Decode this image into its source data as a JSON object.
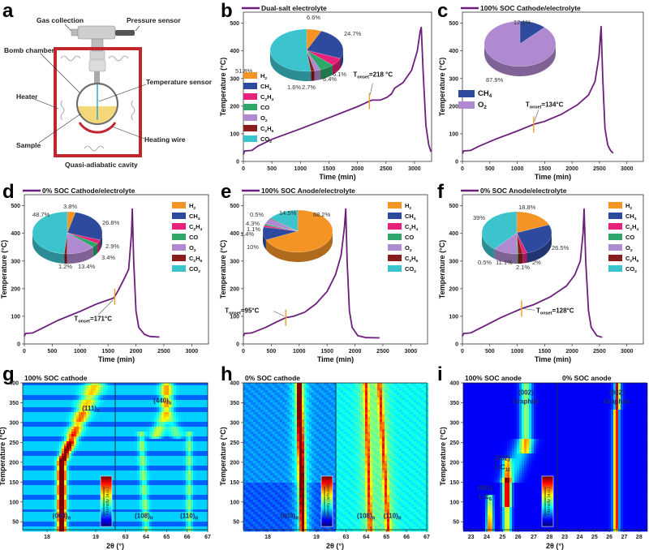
{
  "figure": {
    "panel_labels": [
      "a",
      "b",
      "c",
      "d",
      "e",
      "f",
      "g",
      "h",
      "i"
    ]
  },
  "diagram": {
    "labels": {
      "gas_collection": "Gas collection",
      "pressure_sensor": "Pressure sensor",
      "bomb_chamber": "Bomb chamber",
      "temperature_sensor": "Temperature sensor",
      "heater": "Heater",
      "sample": "Sample",
      "heating_wire": "Heating wire",
      "cavity": "Quasi-adiabatic cavity"
    },
    "colors": {
      "cavity": "#c0272d",
      "sample": "#f5d77a",
      "sensor": "#2aa7c9",
      "wire": "#c0272d"
    }
  },
  "gas_colors": {
    "H2": "#f39425",
    "CH4": "#2e4a9e",
    "C2H4": "#e8207a",
    "CO": "#2fa66a",
    "O2": "#b08ad0",
    "C2H6": "#8a1c1c",
    "CO2": "#3cc4cc"
  },
  "gas_labels": {
    "H2": [
      "H",
      "2",
      ""
    ],
    "CH4": [
      "CH",
      "4",
      ""
    ],
    "C2H4": [
      "C",
      "2",
      "H",
      "4"
    ],
    "CO": [
      "CO",
      "",
      ""
    ],
    "O2": [
      "O",
      "2",
      ""
    ],
    "C2H6": [
      "C",
      "2",
      "H",
      "6"
    ],
    "CO2": [
      "CO",
      "2",
      ""
    ]
  },
  "chart_data": [
    {
      "id": "b",
      "type": "line",
      "legend": "Dual-salt electrolyte",
      "xlabel": "Time (min)",
      "ylabel": "Temperature (°C)",
      "xlim": [
        0,
        3300
      ],
      "ylim": [
        0,
        540
      ],
      "xticks": [
        0,
        500,
        1000,
        1500,
        2000,
        2500,
        3000
      ],
      "yticks": [
        0,
        100,
        200,
        300,
        400,
        500
      ],
      "line_color": "#6b1f7a",
      "points": [
        [
          0,
          25
        ],
        [
          20,
          38
        ],
        [
          150,
          40
        ],
        [
          250,
          55
        ],
        [
          500,
          80
        ],
        [
          1000,
          118
        ],
        [
          1500,
          158
        ],
        [
          2000,
          198
        ],
        [
          2210,
          218
        ],
        [
          2260,
          222
        ],
        [
          2400,
          222
        ],
        [
          2520,
          232
        ],
        [
          2600,
          245
        ],
        [
          2650,
          265
        ],
        [
          2800,
          285
        ],
        [
          2950,
          330
        ],
        [
          3050,
          400
        ],
        [
          3100,
          470
        ],
        [
          3120,
          485
        ],
        [
          3150,
          330
        ],
        [
          3200,
          130
        ],
        [
          3250,
          60
        ],
        [
          3290,
          35
        ]
      ],
      "onset": {
        "time": 2210,
        "temp": 218,
        "label_main": "T",
        "label_sub": "onset",
        "label_val": "=218 °C"
      },
      "pie": {
        "order": [
          "H2",
          "CH4",
          "C2H4",
          "CO",
          "O2",
          "C2H6",
          "CO2"
        ],
        "values": [
          6.6,
          24.7,
          6.1,
          6.4,
          2.7,
          1.6,
          51.8
        ],
        "labels": [
          "6.6%",
          "24.7%",
          "6.1%",
          "6.4%",
          "2.7%",
          "1.6%",
          "51.8%"
        ]
      },
      "legend_position": "left-under-pie"
    },
    {
      "id": "c",
      "type": "line",
      "legend": "100% SOC Cathode/electrolyte",
      "xlabel": "Time (min)",
      "ylabel": "Temperature (°C)",
      "xlim": [
        0,
        3300
      ],
      "ylim": [
        0,
        540
      ],
      "xticks": [
        0,
        500,
        1000,
        1500,
        2000,
        2500,
        3000
      ],
      "yticks": [
        0,
        100,
        200,
        300,
        400,
        500
      ],
      "line_color": "#6b1f7a",
      "points": [
        [
          0,
          28
        ],
        [
          20,
          38
        ],
        [
          150,
          40
        ],
        [
          300,
          55
        ],
        [
          600,
          80
        ],
        [
          1000,
          110
        ],
        [
          1300,
          134
        ],
        [
          1500,
          145
        ],
        [
          1800,
          170
        ],
        [
          2100,
          205
        ],
        [
          2300,
          240
        ],
        [
          2420,
          290
        ],
        [
          2490,
          380
        ],
        [
          2530,
          488
        ],
        [
          2560,
          300
        ],
        [
          2600,
          120
        ],
        [
          2650,
          60
        ],
        [
          2700,
          40
        ],
        [
          2750,
          30
        ]
      ],
      "onset": {
        "time": 1300,
        "temp": 134,
        "label_main": "T",
        "label_sub": "onset",
        "label_val": "=134°C"
      },
      "pie": {
        "order": [
          "CH4",
          "O2"
        ],
        "values": [
          12.1,
          87.9
        ],
        "labels": [
          "12.1%",
          "87.9%"
        ]
      },
      "legend_position": "left-under-pie"
    },
    {
      "id": "d",
      "type": "line",
      "legend": "0% SOC Cathode/electrolyte",
      "xlabel": "Time (min)",
      "ylabel": "Temperature (°C)",
      "xlim": [
        0,
        3300
      ],
      "ylim": [
        0,
        540
      ],
      "xticks": [
        0,
        500,
        1000,
        1500,
        2000,
        2500,
        3000
      ],
      "yticks": [
        0,
        100,
        200,
        300,
        400,
        500
      ],
      "line_color": "#6b1f7a",
      "points": [
        [
          0,
          28
        ],
        [
          20,
          38
        ],
        [
          150,
          40
        ],
        [
          300,
          55
        ],
        [
          600,
          85
        ],
        [
          1000,
          118
        ],
        [
          1300,
          145
        ],
        [
          1600,
          166
        ],
        [
          1620,
          171
        ],
        [
          1700,
          200
        ],
        [
          1800,
          240
        ],
        [
          1870,
          270
        ],
        [
          1920,
          400
        ],
        [
          1935,
          488
        ],
        [
          1960,
          300
        ],
        [
          2000,
          120
        ],
        [
          2050,
          60
        ],
        [
          2150,
          35
        ],
        [
          2250,
          27
        ],
        [
          2420,
          25
        ]
      ],
      "onset": {
        "time": 1620,
        "temp": 171,
        "label_main": "T",
        "label_sub": "onset",
        "label_val": "=171°C"
      },
      "pie": {
        "order": [
          "H2",
          "CH4",
          "C2H4",
          "CO",
          "O2",
          "C2H6",
          "CO2"
        ],
        "values": [
          3.8,
          26.8,
          2.9,
          3.4,
          13.4,
          1.2,
          48.7
        ],
        "labels": [
          "3.8%",
          "26.8%",
          "2.9%",
          "3.4%",
          "13.4%",
          "1.2%",
          "48.7%"
        ]
      },
      "legend_position": "right"
    },
    {
      "id": "e",
      "type": "line",
      "legend": "100% SOC Anode/electrolyte",
      "xlabel": "Time (min)",
      "ylabel": "Temperature (°C)",
      "xlim": [
        0,
        3300
      ],
      "ylim": [
        0,
        540
      ],
      "xticks": [
        0,
        500,
        1000,
        1500,
        2000,
        2500,
        3000
      ],
      "yticks": [
        0,
        100,
        200,
        300,
        400,
        500
      ],
      "line_color": "#6b1f7a",
      "points": [
        [
          0,
          28
        ],
        [
          20,
          38
        ],
        [
          150,
          40
        ],
        [
          400,
          60
        ],
        [
          600,
          80
        ],
        [
          760,
          95
        ],
        [
          900,
          100
        ],
        [
          1100,
          115
        ],
        [
          1300,
          145
        ],
        [
          1500,
          190
        ],
        [
          1650,
          250
        ],
        [
          1750,
          320
        ],
        [
          1810,
          420
        ],
        [
          1835,
          488
        ],
        [
          1860,
          300
        ],
        [
          1900,
          120
        ],
        [
          1950,
          60
        ],
        [
          2050,
          30
        ],
        [
          2200,
          23
        ],
        [
          2440,
          22
        ]
      ],
      "onset": {
        "time": 760,
        "temp": 95,
        "label_main": "T",
        "label_sub": "onset",
        "label_val": "=95°C"
      },
      "pie": {
        "order": [
          "H2",
          "CH4",
          "C2H4",
          "CO",
          "O2",
          "C2H6",
          "CO2"
        ],
        "values": [
          68.2,
          10,
          1.4,
          1.1,
          4.3,
          0.5,
          14.5
        ],
        "labels": [
          "68.2%",
          "10%",
          "1.4%",
          "1.1%",
          "4.3%",
          "0.5%",
          "14.5%"
        ]
      },
      "legend_position": "right"
    },
    {
      "id": "f",
      "type": "line",
      "legend": "0% SOC Anode/electrolyte",
      "xlabel": "Time (min)",
      "ylabel": "Temperature (°C)",
      "xlim": [
        0,
        3300
      ],
      "ylim": [
        0,
        540
      ],
      "xticks": [
        0,
        500,
        1000,
        1500,
        2000,
        2500,
        3000
      ],
      "yticks": [
        0,
        100,
        200,
        300,
        400,
        500
      ],
      "line_color": "#6b1f7a",
      "points": [
        [
          0,
          28
        ],
        [
          20,
          38
        ],
        [
          150,
          40
        ],
        [
          400,
          65
        ],
        [
          700,
          95
        ],
        [
          1080,
          128
        ],
        [
          1300,
          142
        ],
        [
          1600,
          170
        ],
        [
          1900,
          210
        ],
        [
          2050,
          250
        ],
        [
          2150,
          300
        ],
        [
          2200,
          400
        ],
        [
          2220,
          488
        ],
        [
          2250,
          300
        ],
        [
          2300,
          120
        ],
        [
          2350,
          60
        ],
        [
          2450,
          30
        ],
        [
          2550,
          24
        ]
      ],
      "onset": {
        "time": 1080,
        "temp": 128,
        "label_main": "T",
        "label_sub": "onset",
        "label_val": "=128°C"
      },
      "pie": {
        "order": [
          "H2",
          "CH4",
          "C2H4",
          "C2H6",
          "CO",
          "O2",
          "CO2"
        ],
        "values": [
          18.8,
          26.5,
          2,
          2.1,
          0.5,
          11.1,
          39
        ],
        "labels": [
          "18.8%",
          "26.5%",
          "2%",
          "2.1%",
          "0.5%",
          "11.1%",
          "39%"
        ]
      },
      "legend_position": "right"
    },
    {
      "id": "g",
      "type": "heatmap",
      "title": "100% SOC cathode",
      "xlabel": "2θ (°)",
      "ylabel": "Temperature (°C)",
      "ylim": [
        30,
        400
      ],
      "yticks": [
        50,
        100,
        150,
        200,
        250,
        300,
        350,
        400
      ],
      "left_xlim": [
        17.5,
        19.4
      ],
      "left_xticks": [
        18,
        19
      ],
      "right_xlim": [
        62.5,
        67
      ],
      "right_xticks": [
        63,
        64,
        65,
        66,
        67
      ],
      "colorbar_label": "Intensity (a.u.)",
      "peaks": [
        {
          "label": "(003)",
          "sub": "R"
        },
        {
          "label": "(111)",
          "sub": "S"
        },
        {
          "label": "(108)",
          "sub": "R"
        },
        {
          "label": "(110)",
          "sub": "R"
        },
        {
          "label": "(440)",
          "sub": "S"
        }
      ]
    },
    {
      "id": "h",
      "type": "heatmap",
      "title": "0% SOC cathode",
      "xlabel": "2θ (°)",
      "ylabel": "Temperature (°C)",
      "ylim": [
        30,
        400
      ],
      "yticks": [
        50,
        100,
        150,
        200,
        250,
        300,
        350,
        400
      ],
      "left_xlim": [
        17.5,
        19.4
      ],
      "left_xticks": [
        18,
        19
      ],
      "right_xlim": [
        62.5,
        67
      ],
      "right_xticks": [
        63,
        64,
        65,
        66,
        67
      ],
      "colorbar_label": "Intensity (arb.unit)",
      "peaks": [
        {
          "label": "(003)",
          "sub": "R"
        },
        {
          "label": "(108)",
          "sub": "R"
        },
        {
          "label": "(110)",
          "sub": "R"
        }
      ]
    },
    {
      "id": "i",
      "type": "heatmap",
      "title_left": "100% SOC anode",
      "title_right": "0% SOC anode",
      "xlabel": "2θ (°)",
      "ylabel": "Temperature (°C)",
      "ylim": [
        30,
        400
      ],
      "yticks": [
        50,
        100,
        150,
        200,
        250,
        300,
        350,
        400
      ],
      "left_xlim": [
        22.5,
        28.5
      ],
      "left_xticks": [
        23,
        24,
        25,
        26,
        27,
        28
      ],
      "right_xlim": [
        22.5,
        28.5
      ],
      "right_xticks": [
        23,
        24,
        25,
        26,
        27,
        28
      ],
      "colorbar_label": "Intensity (a.u.)",
      "peaks": [
        {
          "label": "(001)",
          "sub": "",
          "line2": "LiC",
          "line2sub": "6"
        },
        {
          "label": "(002)",
          "sub": "",
          "line2": "LiC",
          "line2sub": "12"
        },
        {
          "label": "(002)",
          "sub": "",
          "line2": "Graphite",
          "line2sub": ""
        },
        {
          "label": "(002)",
          "sub": "",
          "line2": "Graphite",
          "line2sub": ""
        }
      ]
    }
  ]
}
